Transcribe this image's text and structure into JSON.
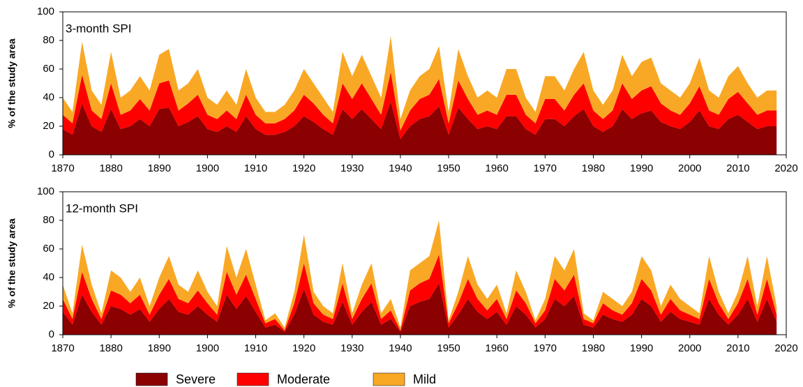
{
  "chart_data": [
    {
      "type": "area",
      "annotation": "3-month SPI",
      "ylabel": "% of the study area",
      "x": [
        1870,
        1872,
        1874,
        1876,
        1878,
        1880,
        1882,
        1884,
        1886,
        1888,
        1890,
        1892,
        1894,
        1896,
        1898,
        1900,
        1902,
        1904,
        1906,
        1908,
        1910,
        1912,
        1914,
        1916,
        1918,
        1920,
        1922,
        1924,
        1926,
        1928,
        1930,
        1932,
        1934,
        1936,
        1938,
        1940,
        1942,
        1944,
        1946,
        1948,
        1950,
        1952,
        1954,
        1956,
        1958,
        1960,
        1962,
        1964,
        1966,
        1968,
        1970,
        1972,
        1974,
        1976,
        1978,
        1980,
        1982,
        1984,
        1986,
        1988,
        1990,
        1992,
        1994,
        1996,
        1998,
        2000,
        2002,
        2004,
        2006,
        2008,
        2010,
        2012,
        2014,
        2016,
        2018
      ],
      "xlim": [
        1870,
        2020
      ],
      "xticks": [
        1870,
        1880,
        1890,
        1900,
        1910,
        1920,
        1930,
        1940,
        1950,
        1960,
        1970,
        1980,
        1990,
        2000,
        2010,
        2020
      ],
      "ylim": [
        0,
        100
      ],
      "yticks": [
        0,
        20,
        40,
        60,
        80,
        100
      ],
      "series": [
        {
          "name": "Severe",
          "color": "#8b0000",
          "values": [
            18,
            14,
            36,
            20,
            16,
            32,
            18,
            20,
            25,
            20,
            32,
            33,
            20,
            23,
            27,
            18,
            16,
            20,
            16,
            27,
            18,
            14,
            14,
            16,
            20,
            27,
            23,
            18,
            14,
            32,
            25,
            32,
            25,
            18,
            37,
            11,
            20,
            25,
            27,
            34,
            14,
            33,
            25,
            18,
            20,
            18,
            27,
            27,
            18,
            14,
            25,
            25,
            20,
            27,
            32,
            20,
            16,
            20,
            32,
            25,
            29,
            31,
            23,
            20,
            18,
            23,
            31,
            20,
            18,
            25,
            28,
            23,
            18,
            20,
            20
          ]
        },
        {
          "name": "Moderate",
          "color": "#ff0000",
          "values": [
            10,
            8,
            20,
            11,
            9,
            18,
            10,
            11,
            14,
            11,
            18,
            19,
            11,
            13,
            15,
            10,
            9,
            11,
            9,
            15,
            10,
            8,
            8,
            9,
            11,
            15,
            13,
            10,
            8,
            18,
            14,
            18,
            14,
            10,
            21,
            6,
            11,
            14,
            15,
            19,
            8,
            19,
            14,
            10,
            11,
            10,
            15,
            15,
            10,
            8,
            14,
            14,
            11,
            15,
            18,
            11,
            9,
            11,
            18,
            14,
            16,
            17,
            13,
            11,
            10,
            13,
            17,
            11,
            10,
            14,
            16,
            13,
            10,
            11,
            11
          ]
        },
        {
          "name": "Mild",
          "color": "#f9a825",
          "values": [
            12,
            8,
            23,
            14,
            10,
            22,
            12,
            14,
            16,
            14,
            20,
            22,
            14,
            14,
            18,
            12,
            10,
            14,
            10,
            18,
            12,
            8,
            8,
            10,
            14,
            18,
            14,
            12,
            8,
            22,
            16,
            20,
            16,
            12,
            25,
            8,
            14,
            16,
            18,
            23,
            8,
            22,
            16,
            12,
            14,
            12,
            18,
            18,
            12,
            8,
            16,
            16,
            14,
            18,
            22,
            14,
            10,
            14,
            20,
            16,
            20,
            20,
            14,
            14,
            12,
            14,
            20,
            14,
            12,
            16,
            18,
            14,
            12,
            14,
            14
          ]
        }
      ]
    },
    {
      "type": "area",
      "annotation": "12-month SPI",
      "ylabel": "% of the study area",
      "x": [
        1870,
        1872,
        1874,
        1876,
        1878,
        1880,
        1882,
        1884,
        1886,
        1888,
        1890,
        1892,
        1894,
        1896,
        1898,
        1900,
        1902,
        1904,
        1906,
        1908,
        1910,
        1912,
        1914,
        1916,
        1918,
        1920,
        1922,
        1924,
        1926,
        1928,
        1930,
        1932,
        1934,
        1936,
        1938,
        1940,
        1942,
        1944,
        1946,
        1948,
        1950,
        1952,
        1954,
        1956,
        1958,
        1960,
        1962,
        1964,
        1966,
        1968,
        1970,
        1972,
        1974,
        1976,
        1978,
        1980,
        1982,
        1984,
        1986,
        1988,
        1990,
        1992,
        1994,
        1996,
        1998,
        2000,
        2002,
        2004,
        2006,
        2008,
        2010,
        2012,
        2014,
        2016,
        2018
      ],
      "xlim": [
        1870,
        2020
      ],
      "xticks": [
        1870,
        1880,
        1890,
        1900,
        1910,
        1920,
        1930,
        1940,
        1950,
        1960,
        1970,
        1980,
        1990,
        2000,
        2010,
        2020
      ],
      "ylim": [
        0,
        100
      ],
      "yticks": [
        0,
        20,
        40,
        60,
        80,
        100
      ],
      "series": [
        {
          "color": "#8b0000",
          "values": [
            16,
            7,
            28,
            16,
            7,
            20,
            18,
            14,
            18,
            9,
            18,
            25,
            16,
            14,
            20,
            14,
            9,
            28,
            18,
            27,
            16,
            5,
            7,
            2,
            14,
            32,
            14,
            9,
            7,
            23,
            7,
            16,
            23,
            7,
            11,
            2,
            20,
            23,
            25,
            36,
            5,
            14,
            25,
            16,
            11,
            16,
            7,
            20,
            14,
            5,
            11,
            25,
            20,
            27,
            7,
            5,
            14,
            11,
            9,
            14,
            25,
            20,
            9,
            16,
            11,
            9,
            7,
            25,
            14,
            7,
            14,
            25,
            9,
            25,
            9
          ]
        },
        {
          "color": "#ff0000",
          "values": [
            9,
            4,
            16,
            9,
            4,
            11,
            10,
            8,
            10,
            5,
            10,
            14,
            9,
            8,
            11,
            8,
            5,
            16,
            10,
            15,
            9,
            3,
            4,
            1,
            8,
            18,
            8,
            5,
            4,
            13,
            4,
            9,
            13,
            4,
            6,
            1,
            11,
            13,
            14,
            20,
            3,
            8,
            14,
            9,
            6,
            9,
            4,
            11,
            8,
            3,
            6,
            14,
            11,
            15,
            4,
            3,
            8,
            6,
            5,
            8,
            14,
            11,
            5,
            9,
            6,
            5,
            4,
            14,
            8,
            4,
            8,
            14,
            5,
            14,
            5
          ]
        },
        {
          "color": "#f9a825",
          "values": [
            10,
            4,
            19,
            10,
            4,
            14,
            12,
            8,
            12,
            6,
            12,
            16,
            10,
            8,
            14,
            8,
            6,
            18,
            12,
            18,
            10,
            2,
            4,
            2,
            8,
            20,
            8,
            6,
            4,
            14,
            4,
            10,
            14,
            4,
            8,
            2,
            14,
            14,
            16,
            24,
            2,
            8,
            16,
            10,
            8,
            10,
            4,
            14,
            8,
            2,
            8,
            16,
            14,
            18,
            4,
            2,
            8,
            8,
            6,
            8,
            16,
            14,
            6,
            10,
            8,
            6,
            4,
            16,
            8,
            4,
            8,
            16,
            6,
            16,
            6
          ]
        }
      ]
    }
  ]
}
